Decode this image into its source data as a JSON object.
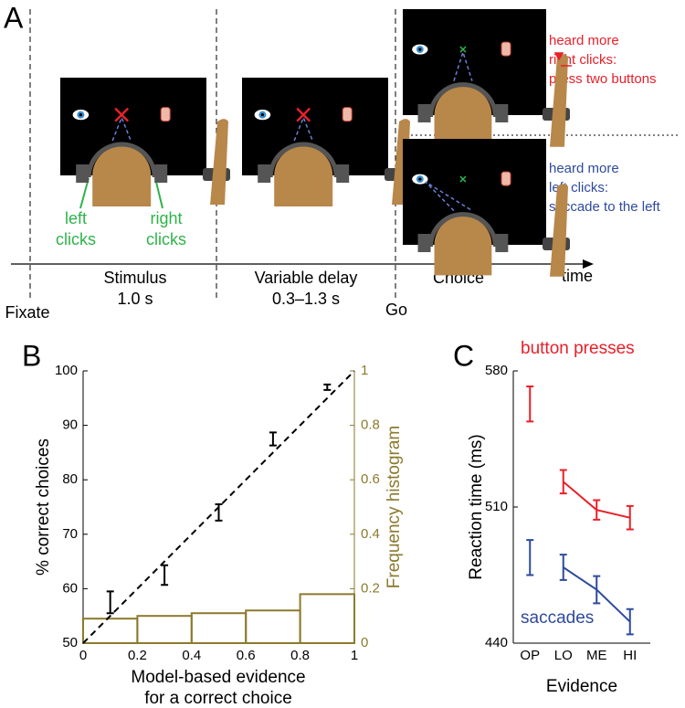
{
  "diagram": {
    "panel": "A",
    "phases": [
      {
        "label": "Stimulus",
        "duration": "1.0 s"
      },
      {
        "label": "Variable delay",
        "duration": "0.3–1.3 s"
      },
      {
        "label": "Choice"
      }
    ],
    "axis_label": "time",
    "events": [
      "Fixate",
      "Go"
    ],
    "clicks": [
      [
        "left",
        "clicks"
      ],
      [
        "right",
        "clicks"
      ]
    ],
    "outcomes": [
      {
        "lines": [
          "heard more",
          "right clicks:",
          "press two buttons"
        ],
        "color": "#e8202a"
      },
      {
        "lines": [
          "heard more",
          "left clicks:",
          "saccade to the left"
        ],
        "color": "#2e4a9c"
      }
    ]
  },
  "chart_data": [
    {
      "type": "errorbar",
      "panel": "B",
      "x": [
        0.1,
        0.3,
        0.5,
        0.7,
        0.9
      ],
      "values": [
        57.5,
        62.5,
        74,
        87.5,
        97
      ],
      "errors": [
        2,
        1.8,
        1.5,
        1.2,
        0.5
      ],
      "color": "#000000",
      "reference_line": {
        "x": [
          0,
          1
        ],
        "y": [
          50,
          100
        ]
      },
      "histogram": {
        "bins": [
          0,
          0.2,
          0.4,
          0.6,
          0.8,
          1
        ],
        "counts": [
          0.09,
          0.1,
          0.11,
          0.12,
          0.18
        ],
        "color": "#8b7a2e",
        "axis": "y2"
      },
      "xlim": [
        0,
        1
      ],
      "xticks": [
        0,
        0.2,
        0.4,
        0.6,
        0.8,
        1
      ],
      "ylim": [
        50,
        100
      ],
      "yticks": [
        50,
        60,
        70,
        80,
        90,
        100
      ],
      "y2lim": [
        0,
        1
      ],
      "y2ticks": [
        0,
        0.2,
        0.4,
        0.6,
        0.8,
        1
      ],
      "xlabel": [
        "Model-based evidence",
        "for a correct choice"
      ],
      "ylabel": "% correct choices",
      "y2label": "Frequency histogram"
    },
    {
      "type": "line",
      "panel": "C",
      "categories": [
        "OP",
        "LO",
        "ME",
        "HI"
      ],
      "series": [
        {
          "name": "button presses",
          "color": "#e8202a",
          "values": [
            563,
            523,
            508.5,
            504.5
          ],
          "errors": [
            9,
            6,
            5,
            6
          ]
        },
        {
          "name": "saccades",
          "color": "#2e4a9c",
          "values": [
            484,
            479,
            467.5,
            451
          ],
          "errors": [
            9,
            6.5,
            7,
            6.5
          ]
        }
      ],
      "line_excludes_first": true,
      "ylim": [
        440,
        580
      ],
      "yticks": [
        440,
        510,
        580
      ],
      "ylabel": "Reaction time (ms)",
      "xlabel": "Evidence"
    }
  ]
}
